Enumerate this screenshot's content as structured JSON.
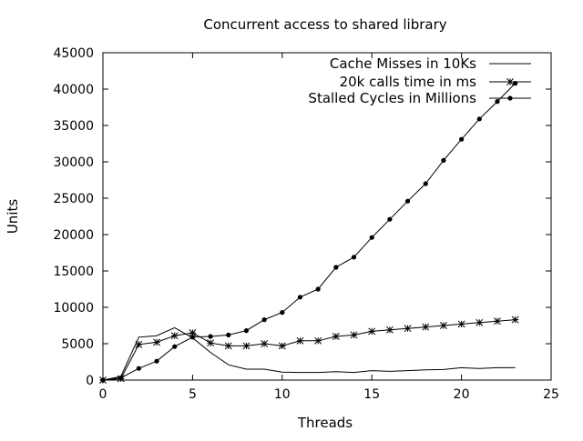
{
  "chart_data": {
    "type": "line",
    "title": "Concurrent access to shared library",
    "xlabel": "Threads",
    "ylabel": "Units",
    "xlim": [
      0,
      25
    ],
    "ylim": [
      0,
      45000
    ],
    "xticks": [
      0,
      5,
      10,
      15,
      20,
      25
    ],
    "yticks": [
      0,
      5000,
      10000,
      15000,
      20000,
      25000,
      30000,
      35000,
      40000,
      45000
    ],
    "grid": false,
    "legend_position": "top-right",
    "series": [
      {
        "name": "Cache Misses in 10Ks",
        "marker": "none",
        "x": [
          0,
          1,
          2,
          3,
          4,
          5,
          6,
          7,
          8,
          9,
          10,
          11,
          12,
          13,
          14,
          15,
          16,
          17,
          18,
          19,
          20,
          21,
          22,
          23
        ],
        "values": [
          0,
          500,
          5900,
          6100,
          7200,
          5800,
          3800,
          2100,
          1500,
          1500,
          1100,
          1050,
          1050,
          1150,
          1050,
          1300,
          1200,
          1300,
          1400,
          1450,
          1700,
          1600,
          1700,
          1700
        ]
      },
      {
        "name": "20k calls time in ms",
        "marker": "star",
        "x": [
          0,
          1,
          2,
          3,
          4,
          5,
          6,
          7,
          8,
          9,
          10,
          11,
          12,
          13,
          14,
          15,
          16,
          17,
          18,
          19,
          20,
          21,
          22,
          23
        ],
        "values": [
          0,
          200,
          4900,
          5200,
          6100,
          6500,
          5100,
          4700,
          4700,
          5000,
          4700,
          5400,
          5400,
          6000,
          6200,
          6700,
          6900,
          7100,
          7300,
          7500,
          7700,
          7900,
          8100,
          8300
        ]
      },
      {
        "name": "Stalled Cycles in Millions",
        "marker": "dot",
        "x": [
          0,
          1,
          2,
          3,
          4,
          5,
          6,
          7,
          8,
          9,
          10,
          11,
          12,
          13,
          14,
          15,
          16,
          17,
          18,
          19,
          20,
          21,
          22,
          23
        ],
        "values": [
          0,
          300,
          1600,
          2600,
          4600,
          5900,
          6000,
          6200,
          6800,
          8300,
          9300,
          11400,
          12500,
          15500,
          16900,
          19600,
          22100,
          24600,
          27000,
          30200,
          33100,
          35900,
          38300,
          40800
        ]
      }
    ]
  }
}
